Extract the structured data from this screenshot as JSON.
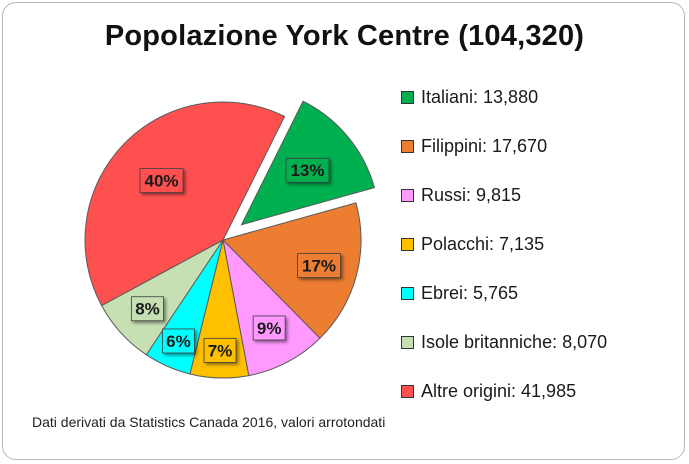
{
  "chart_data": {
    "type": "pie",
    "title": "Popolazione York Centre (104,320)",
    "slices": [
      {
        "legend": "Italiani: 13,880",
        "value": 13880,
        "percent_label": "13%",
        "color": "#00b050",
        "exploded": true
      },
      {
        "legend": "Filippini: 17,670",
        "value": 17670,
        "percent_label": "17%",
        "color": "#ed7d31",
        "exploded": false
      },
      {
        "legend": "Russi: 9,815",
        "value": 9815,
        "percent_label": "9%",
        "color": "#ff99ff",
        "exploded": false
      },
      {
        "legend": "Polacchi: 7,135",
        "value": 7135,
        "percent_label": "7%",
        "color": "#ffc000",
        "exploded": false
      },
      {
        "legend": "Ebrei: 5,765",
        "value": 5765,
        "percent_label": "6%",
        "color": "#00ffff",
        "exploded": false
      },
      {
        "legend": "Isole britanniche: 8,070",
        "value": 8070,
        "percent_label": "8%",
        "color": "#c6e0b4",
        "exploded": false
      },
      {
        "legend": "Altre origini: 41,985",
        "value": 41985,
        "percent_label": "40%",
        "color": "#ff5050",
        "exploded": false
      }
    ],
    "legend_position": "right",
    "footnote": "Dati derivati da Statistics Canada 2016, valori arrotondati"
  }
}
